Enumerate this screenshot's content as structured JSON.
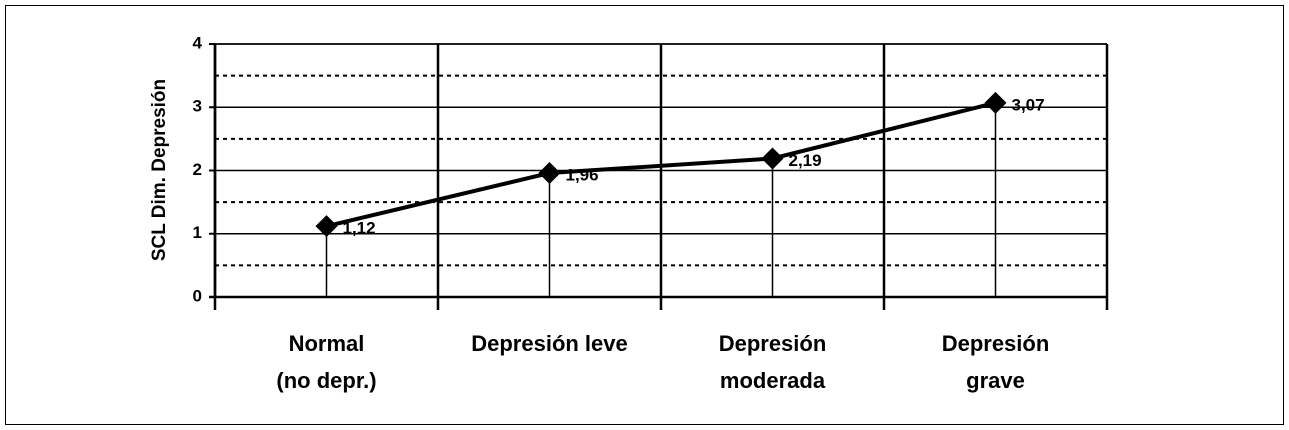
{
  "chart_data": {
    "type": "line",
    "y_label": "SCL Dim. Depresión",
    "categories": [
      [
        "Normal",
        "(no depr.)"
      ],
      [
        "Depresión leve"
      ],
      [
        "Depresión",
        "moderada"
      ],
      [
        "Depresión",
        "grave"
      ]
    ],
    "series": [
      {
        "color": "#000000",
        "values": [
          1.12,
          1.96,
          2.19,
          3.07
        ],
        "value_labels": [
          "1,12",
          "1,96",
          "2,19",
          "3,07"
        ]
      }
    ],
    "ylim": [
      0,
      4
    ],
    "yticks": [
      0,
      1,
      2,
      3,
      4
    ],
    "minor_yticks": [
      0.5,
      1.5,
      2.5,
      3.5
    ],
    "grid": true,
    "drop_lines": true,
    "marker": "diamond"
  }
}
